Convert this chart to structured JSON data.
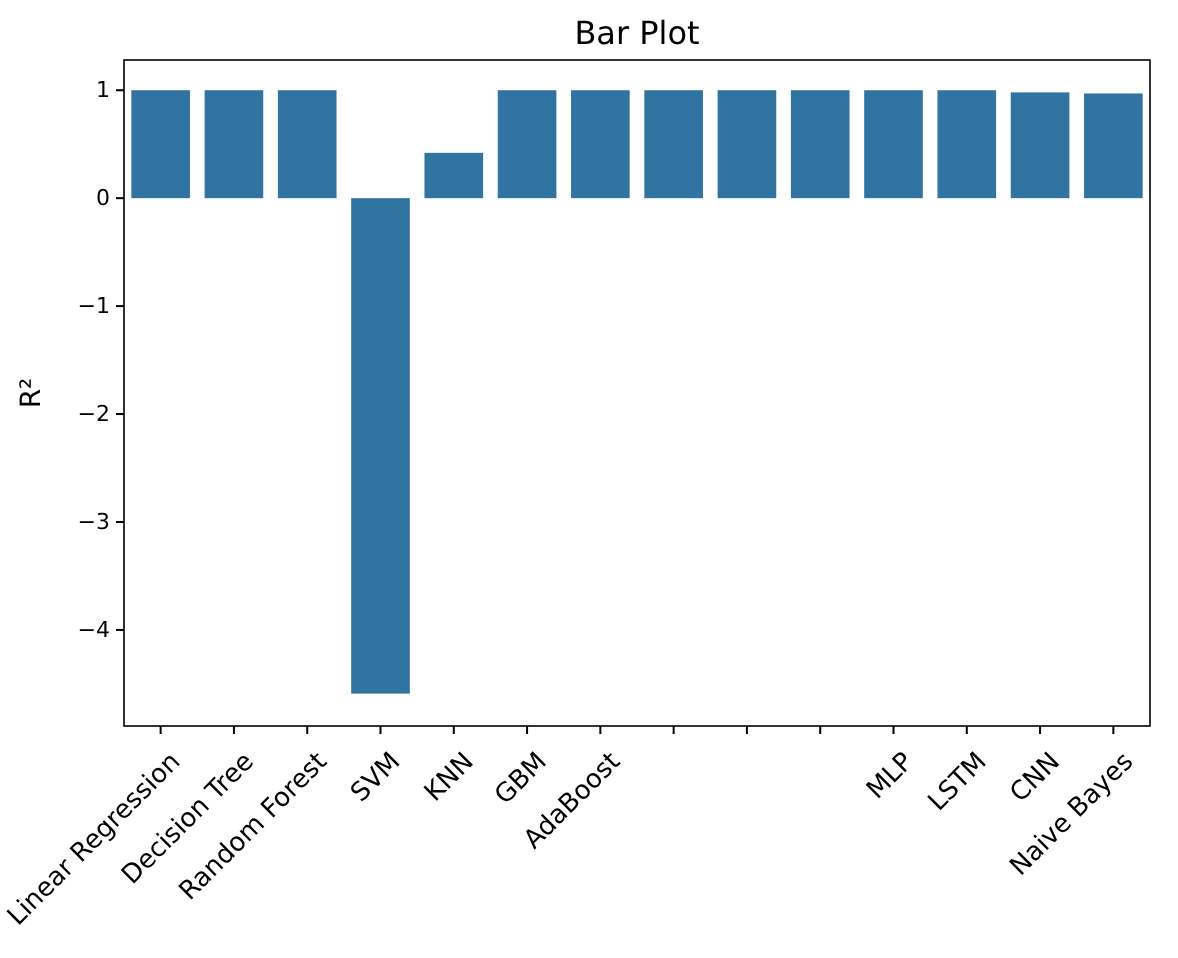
{
  "chart_data": {
    "type": "bar",
    "title": "Bar Plot",
    "ylabel": "R²",
    "categories": [
      "Linear Regression",
      "Decision Tree",
      "Random Forest",
      "SVM",
      "KNN",
      "GBM",
      "AdaBoost",
      null,
      null,
      null,
      "MLP",
      "LSTM",
      "CNN",
      "Naive Bayes"
    ],
    "values": [
      1.0,
      1.0,
      1.0,
      -4.59,
      0.42,
      1.0,
      1.0,
      1.0,
      1.0,
      1.0,
      1.0,
      1.0,
      0.98,
      0.97
    ],
    "color": "#3274a1",
    "ylim": [
      -4.89,
      1.28
    ],
    "yticks": [
      {
        "value": -4,
        "label": "−4"
      },
      {
        "value": -3,
        "label": "−3"
      },
      {
        "value": -2,
        "label": "−2"
      },
      {
        "value": -1,
        "label": "−1"
      },
      0,
      1
    ]
  }
}
